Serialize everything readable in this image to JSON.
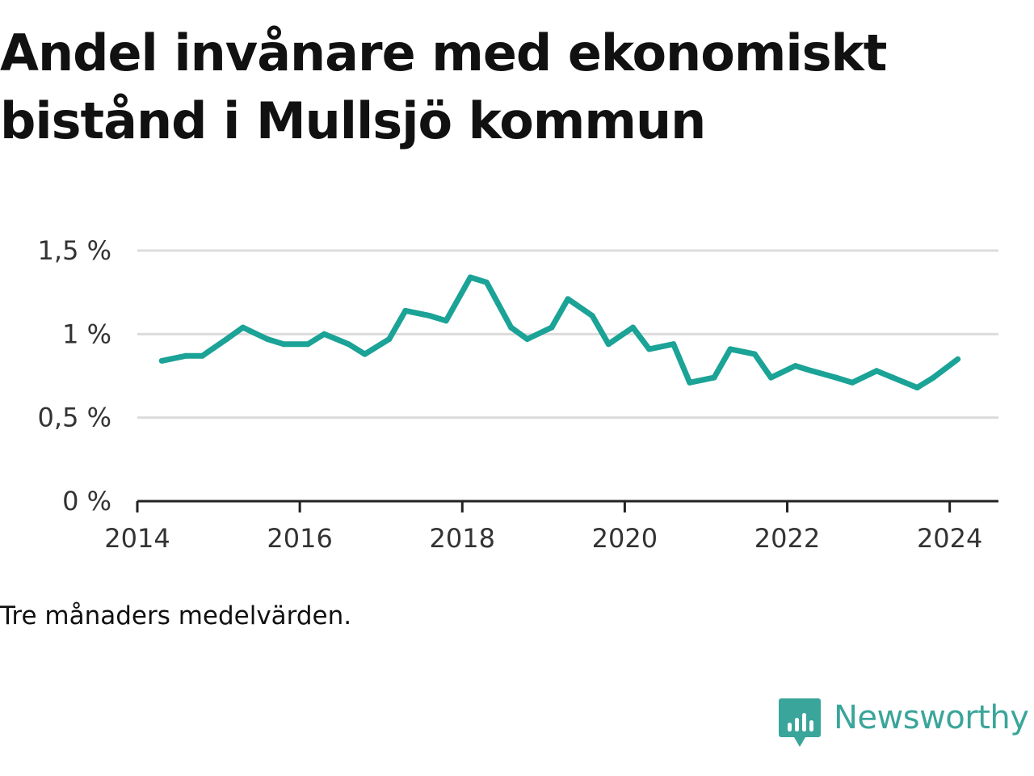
{
  "title": "Andel invånare med ekonomiskt bistånd i Mullsjö kommun",
  "note": "Tre månaders medelvärden.",
  "brand": {
    "name": "Newsworthy",
    "icon": "bar-chart-speech-bubble-icon",
    "color": "#3aa59a"
  },
  "chart_data": {
    "type": "line",
    "title": "Andel invånare med ekonomiskt bistånd i Mullsjö kommun",
    "xlabel": "",
    "ylabel": "",
    "xlim": [
      2014.0,
      2024.6
    ],
    "ylim": [
      0,
      1.5
    ],
    "x_ticks": [
      2014,
      2016,
      2018,
      2020,
      2022,
      2024
    ],
    "x_tick_labels": [
      "2014",
      "2016",
      "2018",
      "2020",
      "2022",
      "2024"
    ],
    "y_ticks": [
      0,
      0.5,
      1,
      1.5
    ],
    "y_tick_labels": [
      "0 %",
      "0,5 %",
      "1 %",
      "1,5 %"
    ],
    "grid": true,
    "line_color": "#1aa396",
    "series": [
      {
        "x": [
          2014.3,
          2014.6,
          2014.8,
          2015.1,
          2015.3,
          2015.6,
          2015.8,
          2016.1,
          2016.3,
          2016.6,
          2016.8,
          2017.1,
          2017.3,
          2017.6,
          2017.8,
          2018.1,
          2018.3,
          2018.6,
          2018.8,
          2019.1,
          2019.3,
          2019.6,
          2019.8,
          2020.1,
          2020.3,
          2020.6,
          2020.8,
          2021.1,
          2021.3,
          2021.6,
          2021.8,
          2022.1,
          2022.3,
          2022.6,
          2022.8,
          2023.1,
          2023.3,
          2023.6,
          2023.8,
          2024.1
        ],
        "values": [
          0.84,
          0.87,
          0.87,
          0.97,
          1.04,
          0.97,
          0.94,
          0.94,
          1.0,
          0.94,
          0.88,
          0.97,
          1.14,
          1.11,
          1.08,
          1.34,
          1.31,
          1.04,
          0.97,
          1.04,
          1.21,
          1.11,
          0.94,
          1.04,
          0.91,
          0.94,
          0.71,
          0.74,
          0.91,
          0.88,
          0.74,
          0.81,
          0.78,
          0.74,
          0.71,
          0.78,
          0.74,
          0.68,
          0.74,
          0.85
        ]
      }
    ]
  }
}
